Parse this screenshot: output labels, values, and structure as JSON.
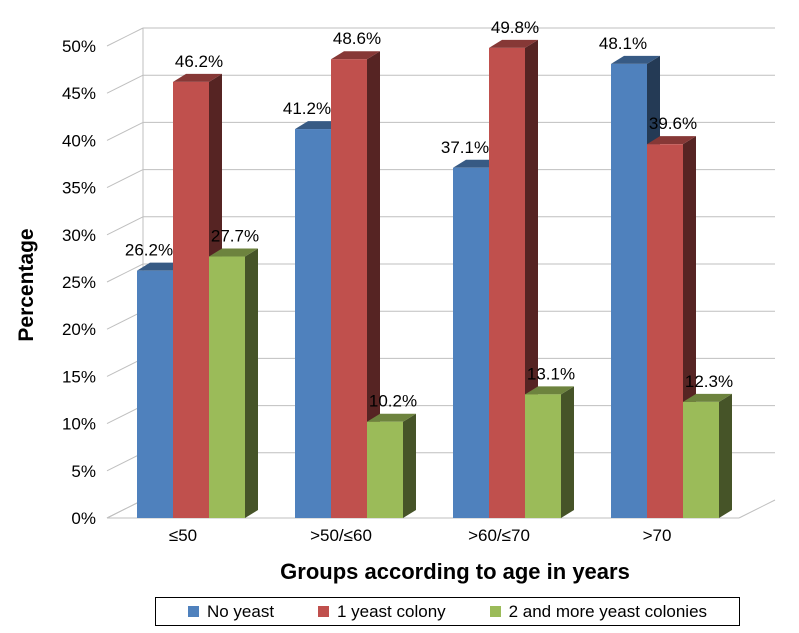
{
  "chart_data": {
    "type": "bar",
    "title": "",
    "xlabel": "Groups according to age in years",
    "ylabel": "Percentage",
    "categories": [
      "≤50",
      ">50/≤60",
      ">60/≤70",
      ">70"
    ],
    "ylim": [
      0,
      50
    ],
    "y_ticks": [
      "0%",
      "5%",
      "10%",
      "15%",
      "20%",
      "25%",
      "30%",
      "35%",
      "40%",
      "45%",
      "50%"
    ],
    "series": [
      {
        "name": "No yeast",
        "values": [
          26.2,
          41.2,
          37.1,
          48.1
        ],
        "labels": [
          "26.2%",
          "41.2%",
          "37.1%",
          "48.1%"
        ],
        "color": "#4f81bd"
      },
      {
        "name": "1 yeast colony",
        "values": [
          46.2,
          48.6,
          49.8,
          39.6
        ],
        "labels": [
          "46.2%",
          "48.6%",
          "49.8%",
          "39.6%"
        ],
        "color": "#c0504d"
      },
      {
        "name": "2 and more yeast colonies",
        "values": [
          27.7,
          10.2,
          13.1,
          12.3
        ],
        "labels": [
          "27.7%",
          "10.2%",
          "13.1%",
          "12.3%"
        ],
        "color": "#9bbb59"
      }
    ],
    "grid": true,
    "legend_position": "bottom",
    "style": "3d-bar"
  }
}
